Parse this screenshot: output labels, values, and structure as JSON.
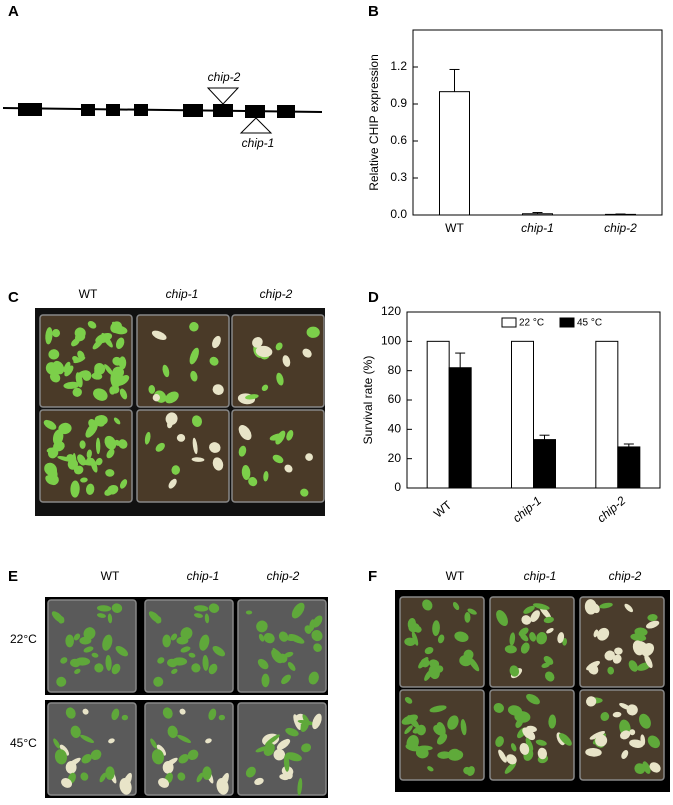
{
  "panel_labels": [
    "A",
    "B",
    "C",
    "D",
    "E",
    "F"
  ],
  "gene_diagram": {
    "insertions": [
      "chip-2",
      "chip-1"
    ]
  },
  "photo_c": {
    "columns": [
      "WT",
      "chip-1",
      "chip-2"
    ]
  },
  "photo_e": {
    "columns": [
      "WT",
      "chip-1",
      "chip-2"
    ],
    "rows": [
      "22°C",
      "45°C"
    ]
  },
  "photo_f": {
    "columns": [
      "WT",
      "chip-1",
      "chip-2"
    ]
  },
  "chart_data": [
    {
      "type": "bar",
      "ylabel": "Relative CHIP expression",
      "categories": [
        "WT",
        "chip-1",
        "chip-2"
      ],
      "values": [
        1.0,
        0.01,
        0.005
      ],
      "errors": [
        0.18,
        0.01,
        0.003
      ],
      "color": "#ffffff",
      "ylim": [
        0,
        1.5
      ],
      "yticks": [
        {
          "value": 0,
          "label": "0.0"
        },
        0.3,
        0.6,
        0.9,
        1.2
      ]
    },
    {
      "type": "grouped_bar",
      "ylabel": "Survival rate (%)",
      "categories": [
        "WT",
        "chip-1",
        "chip-2"
      ],
      "series": [
        {
          "name": "22 °C",
          "color": "#ffffff",
          "values": [
            100,
            100,
            100
          ]
        },
        {
          "name": "45 °C",
          "color": "#000000",
          "values": [
            82,
            33,
            28
          ],
          "errors": [
            10,
            3,
            2
          ]
        }
      ],
      "ylim": [
        0,
        120
      ],
      "yticks": [
        0,
        20,
        40,
        60,
        80,
        100,
        120
      ],
      "legend": "top"
    }
  ]
}
